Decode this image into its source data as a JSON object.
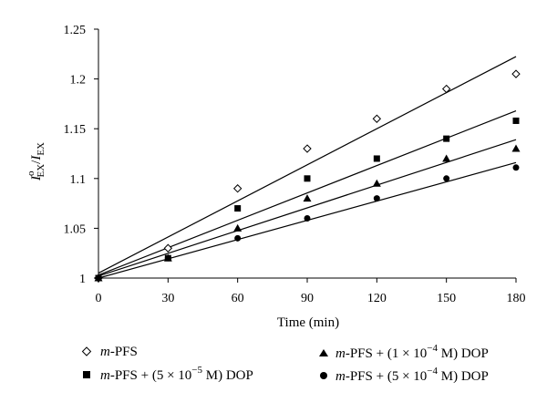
{
  "chart_data": {
    "type": "scatter",
    "title": "",
    "xlabel": "Time (min)",
    "ylabel": {
      "symbol": "I",
      "sup": "o",
      "sub": "EX",
      "sep": "/",
      "symbol2": "I",
      "sub2": "EX"
    },
    "xlim": [
      0,
      180
    ],
    "ylim": [
      1,
      1.25
    ],
    "x_ticks": [
      "0",
      "30",
      "60",
      "90",
      "120",
      "150",
      "180"
    ],
    "y_ticks": [
      "1",
      "1.05",
      "1.1",
      "1.15",
      "1.2",
      "1.25"
    ],
    "grid": false,
    "legend_position": "bottom",
    "x": [
      0,
      30,
      60,
      90,
      120,
      150,
      180
    ],
    "series": [
      {
        "marker": "diamond-open",
        "legend": {
          "italic": "m",
          "text": "-PFS"
        },
        "values": [
          1.0,
          1.03,
          1.09,
          1.13,
          1.16,
          1.19,
          1.205
        ],
        "fit": [
          1.005,
          1.2225
        ]
      },
      {
        "marker": "square",
        "legend": {
          "italic": "m",
          "text": "-PFS + (5 × 10",
          "sup": "−5",
          "text2": " M) DOP"
        },
        "values": [
          1.0,
          1.02,
          1.07,
          1.1,
          1.12,
          1.14,
          1.158
        ],
        "fit": [
          1.003,
          1.168
        ]
      },
      {
        "marker": "triangle",
        "legend": {
          "italic": "m",
          "text": "-PFS + (1 × 10",
          "sup": "−4",
          "text2": " M) DOP"
        },
        "values": [
          1.0,
          1.02,
          1.05,
          1.08,
          1.095,
          1.12,
          1.13
        ],
        "fit": [
          1.002,
          1.139
        ]
      },
      {
        "marker": "circle",
        "legend": {
          "italic": "m",
          "text": "-PFS + (5 × 10",
          "sup": "−4",
          "text2": " M) DOP"
        },
        "values": [
          1.0,
          1.02,
          1.04,
          1.06,
          1.08,
          1.1,
          1.111
        ],
        "fit": [
          1.0,
          1.116
        ]
      }
    ]
  }
}
